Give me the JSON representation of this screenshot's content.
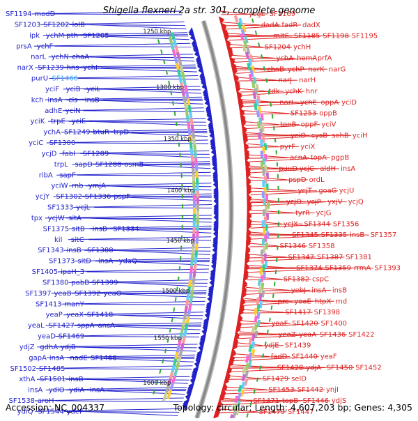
{
  "title": "Shigella flexneri 2a str. 301, complete genome",
  "footer": {
    "accession": "Accession: NC_004337",
    "stats": "Topology: circular; Length: 4,607,203 bp; Genes: 4,305"
  },
  "colors": {
    "forward_gene": "#2222cc",
    "reverse_gene": "#dd2222",
    "highlight_gene": "#33aaff",
    "backbone": "#888888",
    "tick_label": "#222222"
  },
  "ticks": [
    "1250 kbp",
    "1300 kbp",
    "1350 kbp",
    "1400 kbp",
    "1450 kbp",
    "1500 kbp",
    "1550 kbp",
    "1600 kbp"
  ],
  "forward_labels": [
    "SF1194",
    "modD",
    "SF1203",
    "SF1202",
    "lolB",
    "ipk",
    "ychM",
    "pth",
    "SF1205",
    "prsA",
    "ychF",
    "narL",
    "ychN",
    "chaA",
    "narX",
    "SF1239",
    "hns",
    "ychI",
    "purU",
    "SF1466",
    "yciF",
    "yciB",
    "yciL",
    "kch",
    "insA",
    "cls",
    "insB",
    "adhE",
    "yciN",
    "yciK",
    "trpE",
    "yciE",
    "ychA",
    "SF1249",
    "btuR",
    "trpD",
    "yciC",
    "SF1300",
    "ycjD",
    "fabI",
    "SF1289",
    "trpL",
    "sapD",
    "SF1288",
    "osmB",
    "ribA",
    "sapF",
    "yciW",
    "rnb",
    "ymjA",
    "ycjY",
    "SF1302",
    "SF1336",
    "pspF",
    "SF1333",
    "ycjL",
    "tpx",
    "ycjW",
    "sitA",
    "SF1375",
    "sitB",
    "insB",
    "SF1334",
    "kil",
    "sitC",
    "SF1343",
    "insB",
    "SF1388",
    "SF1373",
    "sitD",
    "insA",
    "ydaQ",
    "SF1405",
    "ipaH_3",
    "SF1380",
    "pabB",
    "SF1399",
    "SF1397",
    "yeaB",
    "SF1392",
    "yeaO",
    "SF1413",
    "manY",
    "yeaP",
    "yeaX",
    "SF1418",
    "yeaL",
    "SF1427",
    "sppA",
    "ansA",
    "yeaD",
    "SF1469",
    "ydjZ",
    "gdhA",
    "ydjB",
    "gapA",
    "insA",
    "nadE",
    "SF1466",
    "SF1502",
    "SF1485",
    "xthA",
    "SF1501",
    "insB",
    "insA",
    "ydiO",
    "ydiA",
    "insA",
    "SF1538",
    "aroH",
    "ydiQ",
    "SF1544",
    "ydeF",
    "ydfG",
    "SF1567",
    "ydeW"
  ],
  "reverse_labels": [
    "ycgL",
    "SF1169",
    "dadA",
    "fadR",
    "dadX",
    "mltE",
    "SF1185",
    "SF1198",
    "SF1195",
    "SF1204",
    "ychH",
    "ychA",
    "hemA",
    "prfA",
    "chaB",
    "ychP",
    "narK",
    "narG",
    "narJ",
    "narH",
    "tdk",
    "ychK",
    "hnr",
    "narI",
    "ychE",
    "oppA",
    "yciD",
    "SF1253",
    "oppB",
    "tonB",
    "oppF",
    "yciV",
    "yciO",
    "cysB",
    "sohB",
    "yciH",
    "pyrF",
    "yciX",
    "acnA",
    "topA",
    "pgpB",
    "puuD",
    "ycjC",
    "aldH",
    "insA",
    "pspD",
    "ordL",
    "ycjT",
    "goaG",
    "ycjU",
    "ycjO",
    "ycjP",
    "yxjV",
    "ycjQ",
    "tyrR",
    "ycjG",
    "ycjX",
    "SF1344",
    "SF1356",
    "SF1345",
    "SF1335",
    "insB",
    "SF1357",
    "SF1346",
    "SF1358",
    "SF1347",
    "SF1387",
    "SF1381",
    "SF1374",
    "SF1359",
    "rrmA",
    "SF1393",
    "SF1382",
    "cspC",
    "yebJ",
    "insA",
    "insB",
    "prc",
    "yoaE",
    "htpX",
    "rnd",
    "SF1417",
    "SF1398",
    "yoaF",
    "SF1420",
    "SF1400",
    "yeaZ",
    "yeaA",
    "SF1436",
    "SF1422",
    "ydjE",
    "SF1439",
    "fadD",
    "SF1440",
    "yeaF",
    "SF1428",
    "ydjA",
    "SF1450",
    "SF1452",
    "SF1429",
    "selD",
    "SF1453",
    "SF1442",
    "ynjI",
    "SF1471",
    "topB",
    "SF1446",
    "ydjS",
    "SF1479",
    "SF1447",
    "celC",
    "spy",
    "SF1480"
  ]
}
